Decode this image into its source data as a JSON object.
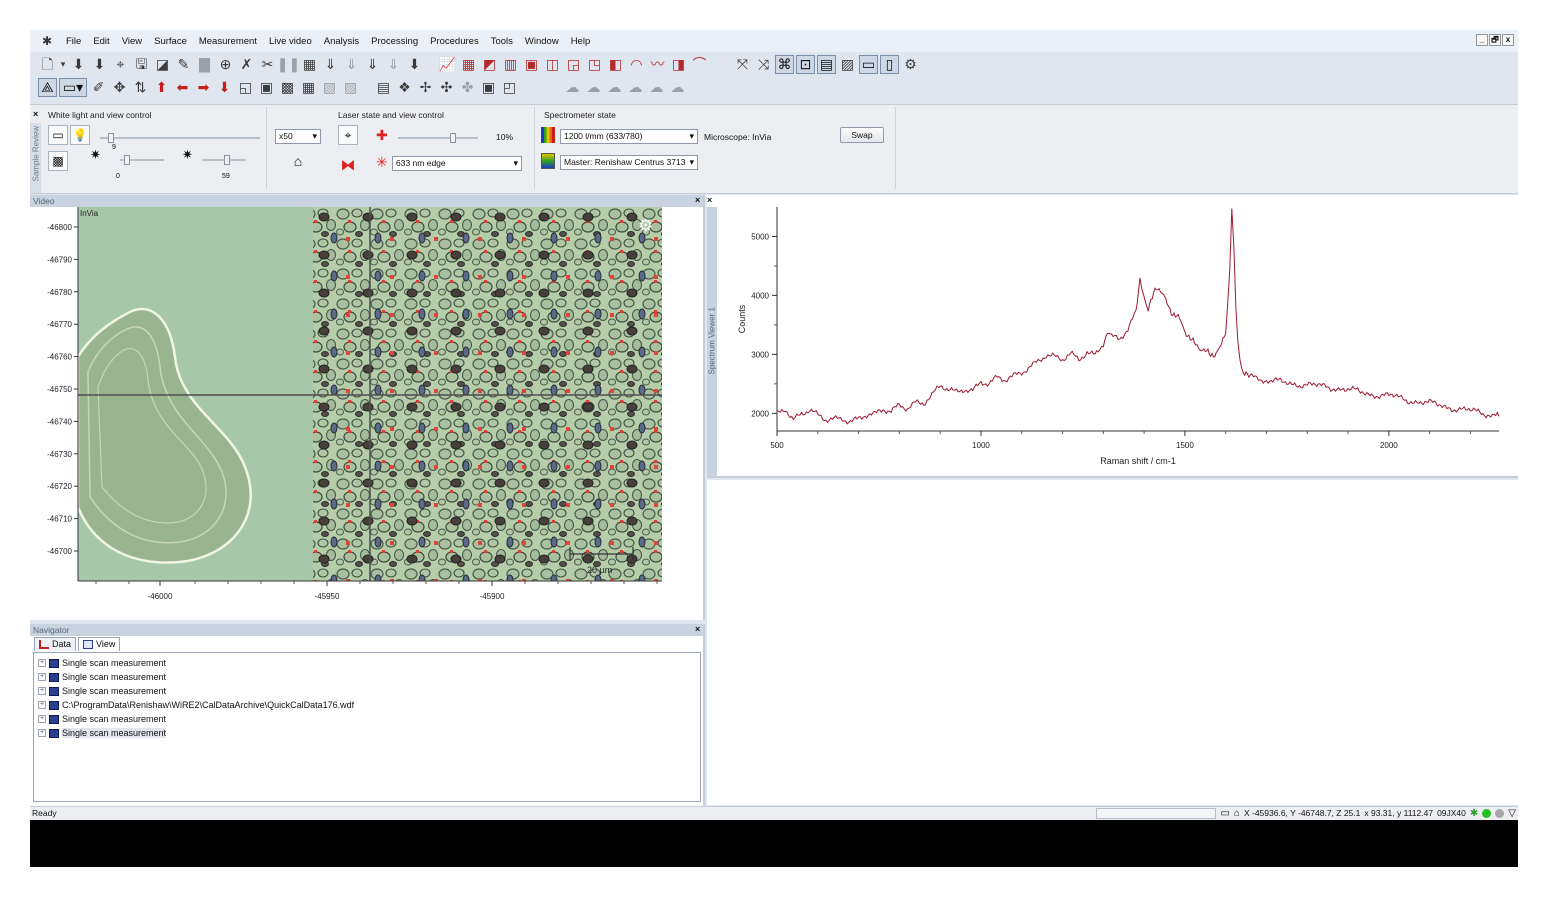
{
  "menu": {
    "items": [
      "File",
      "Edit",
      "View",
      "Surface",
      "Measurement",
      "Live video",
      "Analysis",
      "Processing",
      "Procedures",
      "Tools",
      "Window",
      "Help"
    ],
    "window_controls": [
      "_",
      "🗗",
      "x"
    ]
  },
  "toolbar1_icons": [
    "new-icon",
    "open-icon",
    "save-icon",
    "print-icon",
    "chart-icon",
    "tools-icon",
    "camera-icon",
    "globe-icon",
    "laser-icon",
    "stage-icon",
    "arrow-down-icon",
    "arrow-down-icon",
    "arrow-down-icon",
    "arrow-down-icon",
    "arrow-down-icon"
  ],
  "dock": {
    "white_light": {
      "title": "White light and view control",
      "objective": "x50",
      "brightness_value": 0.05,
      "low_value": "9",
      "low_tick": "0",
      "high_value": "59",
      "low_level": 0.1,
      "high_level": 0.59
    },
    "laser": {
      "title": "Laser state and view control",
      "power": "10%",
      "power_level": 0.7,
      "laser_select": "633 nm edge"
    },
    "spectrometer": {
      "title": "Spectrometer state",
      "grating": "1200 l/mm (633/780)",
      "microscope": "Microscope: InVia",
      "master": "Master: Renishaw Centrus 3713",
      "swap": "Swap"
    },
    "side_label": "Sample Review"
  },
  "video": {
    "title": "Video",
    "overlay_label": "InVia",
    "scale_label": "20 µm",
    "y_ticks": [
      "-46800",
      "-46790",
      "-46780",
      "-46770",
      "-46760",
      "-46750",
      "-46740",
      "-46730",
      "-46720",
      "-46710",
      "-46700"
    ],
    "x_ticks": [
      "-46000",
      "-45950",
      "-45900"
    ]
  },
  "chart_data": {
    "type": "line",
    "title": "",
    "xlabel": "Raman shift / cm-1",
    "ylabel": "Counts",
    "xlim": [
      500,
      2270
    ],
    "ylim": [
      1700,
      5500
    ],
    "x_ticks": [
      500,
      1000,
      1500,
      2000
    ],
    "y_ticks": [
      2000,
      3000,
      4000,
      5000
    ],
    "grid": false,
    "color": "#9b1b30",
    "series": [
      {
        "x": [
          500,
          520,
          540,
          560,
          580,
          600,
          620,
          640,
          660,
          680,
          700,
          720,
          740,
          760,
          780,
          800,
          820,
          840,
          860,
          880,
          900,
          920,
          940,
          960,
          980,
          1000,
          1020,
          1040,
          1060,
          1080,
          1100,
          1120,
          1140,
          1160,
          1180,
          1200,
          1220,
          1240,
          1260,
          1280,
          1300,
          1310,
          1320,
          1340,
          1360,
          1380,
          1390,
          1400,
          1410,
          1420,
          1430,
          1440,
          1450,
          1460,
          1470,
          1480,
          1490,
          1500,
          1510,
          1520,
          1530,
          1540,
          1550,
          1560,
          1570,
          1580,
          1590,
          1600,
          1605,
          1610,
          1615,
          1620,
          1625,
          1630,
          1635,
          1640,
          1650,
          1660,
          1680,
          1700,
          1750,
          1800,
          1850,
          1900,
          1950,
          2000,
          2050,
          2100,
          2150,
          2200,
          2250,
          2270
        ],
        "values": [
          2000,
          2100,
          1900,
          2000,
          2050,
          1950,
          1880,
          1900,
          1920,
          1880,
          1920,
          1980,
          1970,
          2050,
          2020,
          2150,
          2100,
          2200,
          2180,
          2300,
          2450,
          2400,
          2350,
          2420,
          2400,
          2550,
          2500,
          2600,
          2550,
          2620,
          2700,
          2800,
          2900,
          3000,
          2950,
          2900,
          3000,
          2900,
          3050,
          3000,
          3200,
          3350,
          3300,
          3250,
          3400,
          3700,
          4250,
          4000,
          3750,
          3950,
          4150,
          4100,
          3950,
          3800,
          3700,
          3650,
          3550,
          3400,
          3300,
          3200,
          3150,
          3100,
          3050,
          3000,
          3000,
          3050,
          3150,
          3400,
          3800,
          4500,
          5450,
          4800,
          3800,
          3200,
          2900,
          2750,
          2650,
          2600,
          2580,
          2550,
          2520,
          2480,
          2450,
          2400,
          2330,
          2300,
          2220,
          2170,
          2100,
          2040,
          1980,
          1950
        ]
      }
    ]
  },
  "spectrum_side_label": "Spectrum Viewer 1",
  "navigator": {
    "title": "Navigator",
    "tabs": [
      "Data",
      "View"
    ],
    "items": [
      "Single scan measurement",
      "Single scan measurement",
      "Single scan measurement",
      "C:\\ProgramData\\Renishaw\\WiRE2\\CalDataArchive\\QuickCalData176.wdf",
      "Single scan measurement",
      "Single scan measurement"
    ]
  },
  "status": {
    "ready": "Ready",
    "coords": "X -45936.6, Y -46748.7, Z 25.1",
    "xy": "x 93.31, y 1112.47",
    "code": "09JX40"
  }
}
